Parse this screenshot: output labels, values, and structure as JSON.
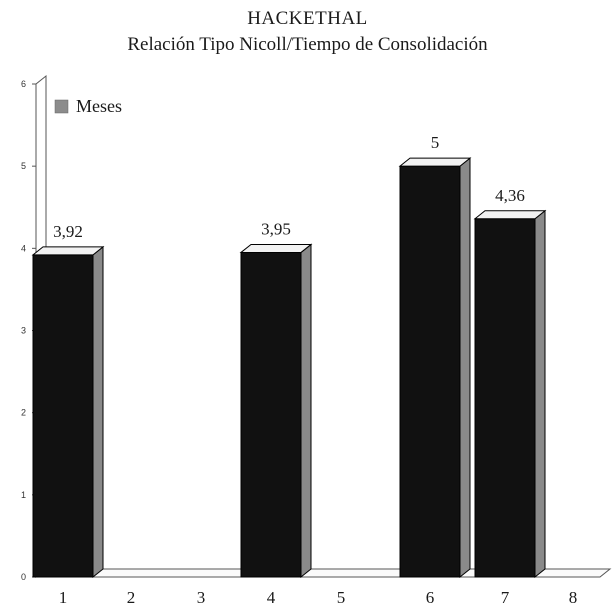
{
  "chart_data": {
    "type": "bar",
    "title": "HACKETHAL",
    "subtitle": "Relación Tipo Nicoll/Tiempo de Consolidación",
    "categories": [
      "1",
      "2",
      "3",
      "4",
      "5",
      "6",
      "7",
      "8"
    ],
    "series": [
      {
        "name": "Meses",
        "values": [
          3.92,
          0,
          0,
          3.95,
          0,
          5,
          4.36,
          0
        ],
        "labels": [
          "3,92",
          "",
          "",
          "3,95",
          "",
          "5",
          "4,36",
          ""
        ]
      }
    ],
    "y_ticks": [
      "0",
      "1",
      "2",
      "3",
      "4",
      "5",
      "6"
    ],
    "ylim": [
      0,
      6
    ],
    "legend_position": "top-left",
    "grid": false,
    "style": "3d",
    "colors": {
      "bar_front": "#111111",
      "bar_top": "#f2f2f2",
      "bar_side": "#8a8a8a",
      "legend_swatch": "#8c8c8c"
    }
  }
}
